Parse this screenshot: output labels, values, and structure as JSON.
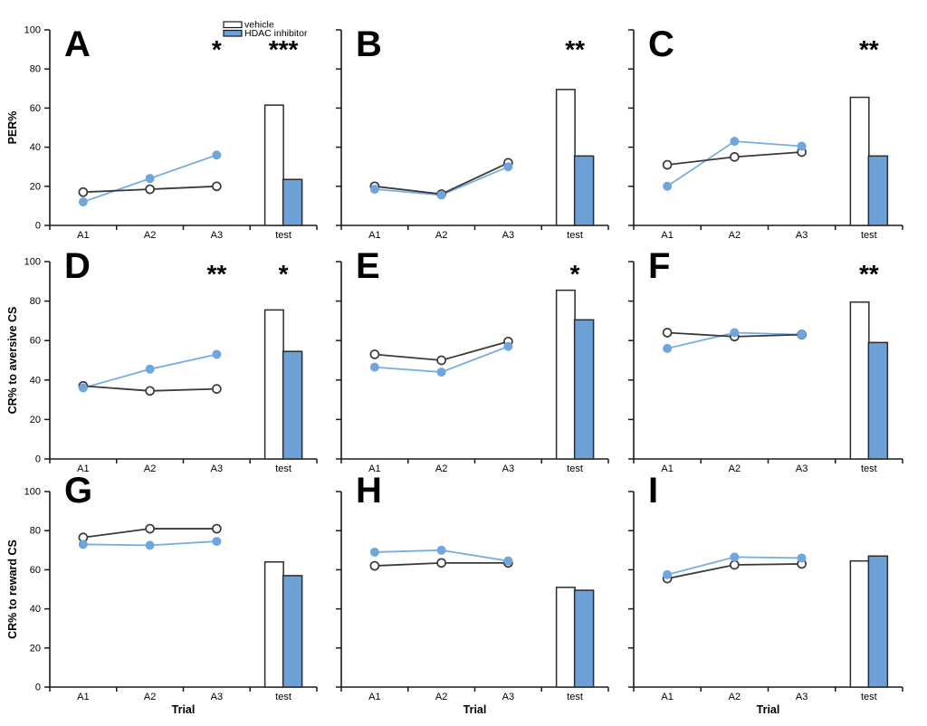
{
  "figure": {
    "legend": {
      "items": [
        {
          "label": "vehicle",
          "swatch_color": "#FFFFFF"
        },
        {
          "label": "HDAC inhibitor",
          "swatch_color": "#6CA0D6"
        }
      ]
    },
    "colors": {
      "background": "#FFFFFF",
      "axis": "#1A1A1A",
      "vehicle_line": "#3A3A3A",
      "vehicle_marker_fill": "#FFFFFF",
      "vehicle_bar_fill": "#FFFFFF",
      "hdac_line": "#79ADE2",
      "hdac_marker_fill": "#6FA6DF",
      "hdac_bar_fill": "#6CA0D6",
      "bar_stroke": "#2B2B2B"
    },
    "y_tick_labels": [
      "0",
      "20",
      "40",
      "60",
      "80",
      "100"
    ],
    "x_categories": [
      "A1",
      "A2",
      "A3",
      "test"
    ],
    "x_axis_title": "Trial",
    "row_y_axis_titles": [
      "PER%",
      "CR% to aversive CS",
      "CR% to reward CS"
    ]
  },
  "chart_data": [
    {
      "panel": "A",
      "type": "line+bar",
      "row": 0,
      "col": 0,
      "ylabel": "PER%",
      "xlabel": "",
      "ylim": [
        0,
        100
      ],
      "show_y_tick_labels": true,
      "has_legend": true,
      "categories": [
        "A1",
        "A2",
        "A3",
        "test"
      ],
      "series": [
        {
          "name": "vehicle",
          "values": [
            17,
            18.5,
            20
          ]
        },
        {
          "name": "HDAC inhibitor",
          "values": [
            12,
            24,
            36
          ]
        }
      ],
      "test_bars": {
        "vehicle": 61.5,
        "hdac": 23.5
      },
      "significance": [
        {
          "at": "A3",
          "label": "*"
        },
        {
          "at": "test",
          "label": "***"
        }
      ]
    },
    {
      "panel": "B",
      "type": "line+bar",
      "row": 0,
      "col": 1,
      "ylabel": "",
      "xlabel": "",
      "ylim": [
        0,
        100
      ],
      "show_y_tick_labels": false,
      "has_legend": false,
      "categories": [
        "A1",
        "A2",
        "A3",
        "test"
      ],
      "series": [
        {
          "name": "vehicle",
          "values": [
            20,
            16,
            32
          ]
        },
        {
          "name": "HDAC inhibitor",
          "values": [
            18.5,
            15.5,
            30
          ]
        }
      ],
      "test_bars": {
        "vehicle": 69.5,
        "hdac": 35.5
      },
      "significance": [
        {
          "at": "test",
          "label": "**"
        }
      ]
    },
    {
      "panel": "C",
      "type": "line+bar",
      "row": 0,
      "col": 2,
      "ylabel": "",
      "xlabel": "",
      "ylim": [
        0,
        100
      ],
      "show_y_tick_labels": false,
      "has_legend": false,
      "categories": [
        "A1",
        "A2",
        "A3",
        "test"
      ],
      "series": [
        {
          "name": "vehicle",
          "values": [
            31,
            35,
            37.5
          ]
        },
        {
          "name": "HDAC inhibitor",
          "values": [
            20,
            43,
            40.5
          ]
        }
      ],
      "test_bars": {
        "vehicle": 65.5,
        "hdac": 35.5
      },
      "significance": [
        {
          "at": "test",
          "label": "**"
        }
      ]
    },
    {
      "panel": "D",
      "type": "line+bar",
      "row": 1,
      "col": 0,
      "ylabel": "CR% to aversive CS",
      "xlabel": "",
      "ylim": [
        0,
        100
      ],
      "show_y_tick_labels": true,
      "has_legend": false,
      "categories": [
        "A1",
        "A2",
        "A3",
        "test"
      ],
      "series": [
        {
          "name": "vehicle",
          "values": [
            37,
            34.5,
            35.5
          ]
        },
        {
          "name": "HDAC inhibitor",
          "values": [
            36,
            45.5,
            53
          ]
        }
      ],
      "test_bars": {
        "vehicle": 75.5,
        "hdac": 54.5
      },
      "significance": [
        {
          "at": "A3",
          "label": "**"
        },
        {
          "at": "test",
          "label": "*"
        }
      ]
    },
    {
      "panel": "E",
      "type": "line+bar",
      "row": 1,
      "col": 1,
      "ylabel": "",
      "xlabel": "",
      "ylim": [
        0,
        100
      ],
      "show_y_tick_labels": false,
      "has_legend": false,
      "categories": [
        "A1",
        "A2",
        "A3",
        "test"
      ],
      "series": [
        {
          "name": "vehicle",
          "values": [
            53,
            50,
            59.5
          ]
        },
        {
          "name": "HDAC inhibitor",
          "values": [
            46.5,
            44,
            57
          ]
        }
      ],
      "test_bars": {
        "vehicle": 85.5,
        "hdac": 70.5
      },
      "significance": [
        {
          "at": "test",
          "label": "*"
        }
      ]
    },
    {
      "panel": "F",
      "type": "line+bar",
      "row": 1,
      "col": 2,
      "ylabel": "",
      "xlabel": "",
      "ylim": [
        0,
        100
      ],
      "show_y_tick_labels": false,
      "has_legend": false,
      "categories": [
        "A1",
        "A2",
        "A3",
        "test"
      ],
      "series": [
        {
          "name": "vehicle",
          "values": [
            64,
            62,
            63
          ]
        },
        {
          "name": "HDAC inhibitor",
          "values": [
            56,
            64,
            63
          ]
        }
      ],
      "test_bars": {
        "vehicle": 79.5,
        "hdac": 59
      },
      "significance": [
        {
          "at": "test",
          "label": "**"
        }
      ]
    },
    {
      "panel": "G",
      "type": "line+bar",
      "row": 2,
      "col": 0,
      "ylabel": "CR% to reward CS",
      "xlabel": "Trial",
      "ylim": [
        0,
        100
      ],
      "show_y_tick_labels": true,
      "has_legend": false,
      "categories": [
        "A1",
        "A2",
        "A3",
        "test"
      ],
      "series": [
        {
          "name": "vehicle",
          "values": [
            76.5,
            81,
            81
          ]
        },
        {
          "name": "HDAC inhibitor",
          "values": [
            73,
            72.5,
            74.5
          ]
        }
      ],
      "test_bars": {
        "vehicle": 64,
        "hdac": 57
      },
      "significance": []
    },
    {
      "panel": "H",
      "type": "line+bar",
      "row": 2,
      "col": 1,
      "ylabel": "",
      "xlabel": "Trial",
      "ylim": [
        0,
        100
      ],
      "show_y_tick_labels": false,
      "has_legend": false,
      "categories": [
        "A1",
        "A2",
        "A3",
        "test"
      ],
      "series": [
        {
          "name": "vehicle",
          "values": [
            62,
            63.5,
            63.5
          ]
        },
        {
          "name": "HDAC inhibitor",
          "values": [
            69,
            70,
            64.5
          ]
        }
      ],
      "test_bars": {
        "vehicle": 51,
        "hdac": 49.5
      },
      "significance": []
    },
    {
      "panel": "I",
      "type": "line+bar",
      "row": 2,
      "col": 2,
      "ylabel": "",
      "xlabel": "Trial",
      "ylim": [
        0,
        100
      ],
      "show_y_tick_labels": false,
      "has_legend": false,
      "categories": [
        "A1",
        "A2",
        "A3",
        "test"
      ],
      "series": [
        {
          "name": "vehicle",
          "values": [
            55.5,
            62.5,
            63
          ]
        },
        {
          "name": "HDAC inhibitor",
          "values": [
            57.5,
            66.5,
            66
          ]
        }
      ],
      "test_bars": {
        "vehicle": 64.5,
        "hdac": 67
      },
      "significance": []
    }
  ]
}
